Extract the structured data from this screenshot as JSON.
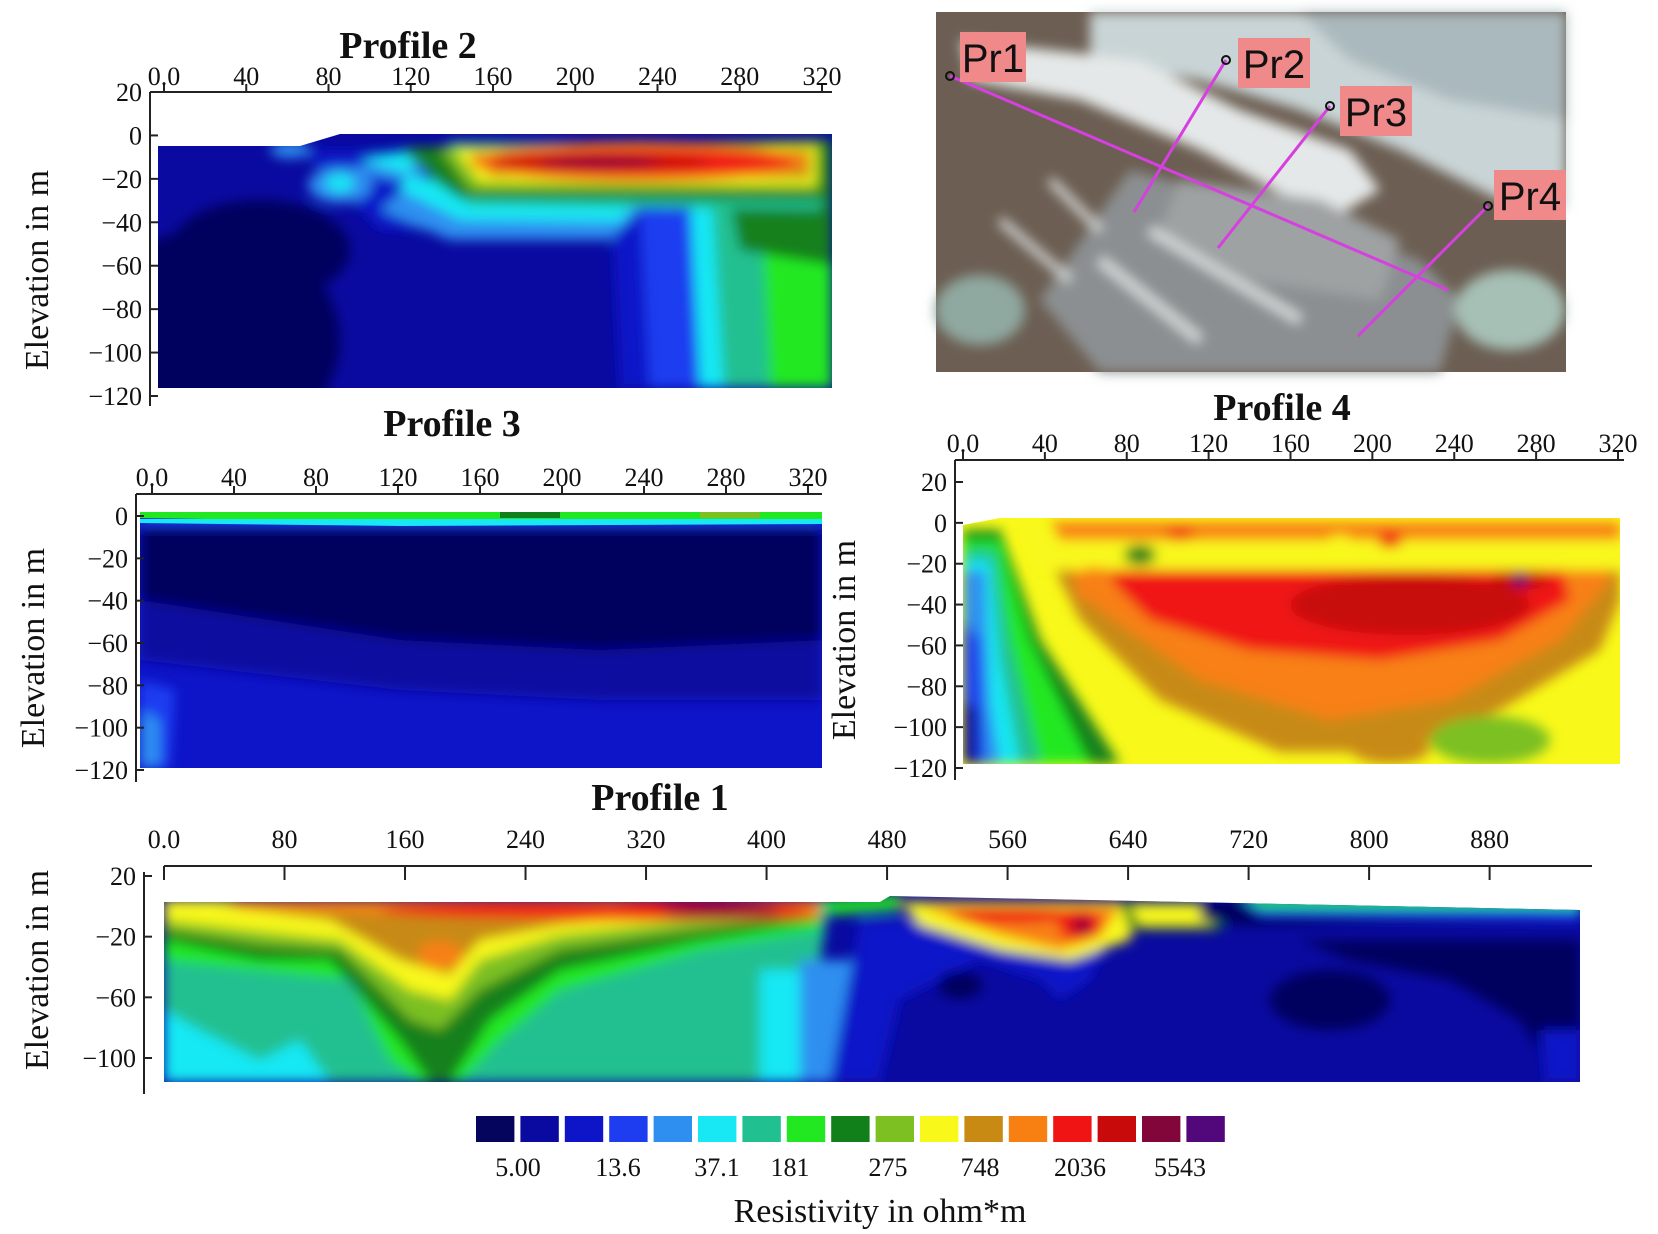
{
  "chart_data": [
    {
      "id": "p2",
      "type": "heatmap",
      "title": "Profile 2",
      "ylabel": "Elevation in m",
      "x_ticks": [
        "0.0",
        "40",
        "80",
        "120",
        "160",
        "200",
        "240",
        "280",
        "320"
      ],
      "y_ticks": [
        "20",
        "0",
        "−20",
        "−40",
        "−60",
        "−80",
        "−100",
        "−120"
      ],
      "xlim": [
        0,
        320
      ],
      "ylim": [
        -120,
        20
      ]
    },
    {
      "id": "p3",
      "type": "heatmap",
      "title": "Profile 3",
      "ylabel": "Elevation in m",
      "x_ticks": [
        "0.0",
        "40",
        "80",
        "120",
        "160",
        "200",
        "240",
        "280",
        "320"
      ],
      "y_ticks": [
        "0",
        "−20",
        "−40",
        "−60",
        "−80",
        "−100",
        "−120"
      ],
      "xlim": [
        0,
        320
      ],
      "ylim": [
        -120,
        0
      ]
    },
    {
      "id": "p4",
      "type": "heatmap",
      "title": "Profile 4",
      "ylabel": "Elevation in m",
      "x_ticks": [
        "0.0",
        "40",
        "80",
        "120",
        "160",
        "200",
        "240",
        "280",
        "320"
      ],
      "y_ticks": [
        "20",
        "0",
        "−20",
        "−40",
        "−60",
        "−80",
        "−100",
        "−120"
      ],
      "xlim": [
        0,
        320
      ],
      "ylim": [
        -120,
        20
      ]
    },
    {
      "id": "p1",
      "type": "heatmap",
      "title": "Profile 1",
      "ylabel": "Elevation in m",
      "x_ticks": [
        "0.0",
        "80",
        "160",
        "240",
        "320",
        "400",
        "480",
        "560",
        "640",
        "720",
        "800",
        "880"
      ],
      "y_ticks": [
        "20",
        "−20",
        "−60",
        "−100"
      ],
      "xlim": [
        0,
        940
      ],
      "ylim": [
        -120,
        20
      ]
    }
  ],
  "map": {
    "labels": [
      "Pr1",
      "Pr2",
      "Pr3",
      "Pr4"
    ],
    "label_bg": "#f08a8a",
    "line_color": "#d63fe0"
  },
  "colorbar": {
    "title": "Resistivity in ohm*m",
    "tick_labels": [
      "5.00",
      "13.6",
      "37.1",
      "181",
      "275",
      "748",
      "2036",
      "5543"
    ],
    "colors": [
      "#05055e",
      "#0a0aa0",
      "#0e14c8",
      "#1f3df0",
      "#2f8ff0",
      "#18e8f4",
      "#20c090",
      "#22e822",
      "#12801a",
      "#7cc022",
      "#f8f81a",
      "#c88a12",
      "#f88012",
      "#f01414",
      "#c80a0a",
      "#82063a",
      "#52087a"
    ]
  }
}
